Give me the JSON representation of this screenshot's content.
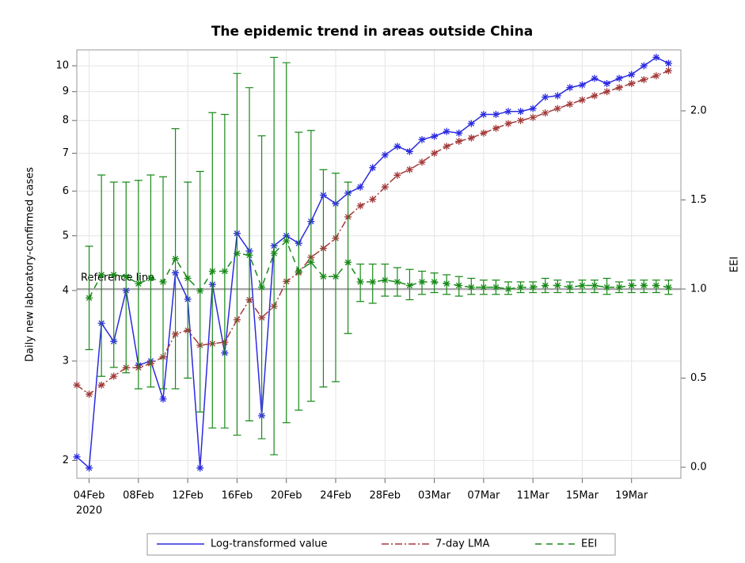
{
  "chart_data": {
    "type": "line",
    "title": "The epidemic trend in areas outside China",
    "y_label": "Daily new laboratory-confirmed cases",
    "y2_label": "EEI",
    "x_year_label": "2020",
    "yscale": "log",
    "grid": true,
    "legend_position": "bottom",
    "x": [
      "2020-02-03",
      "2020-02-04",
      "2020-02-05",
      "2020-02-06",
      "2020-02-07",
      "2020-02-08",
      "2020-02-09",
      "2020-02-10",
      "2020-02-11",
      "2020-02-12",
      "2020-02-13",
      "2020-02-14",
      "2020-02-15",
      "2020-02-16",
      "2020-02-17",
      "2020-02-18",
      "2020-02-19",
      "2020-02-20",
      "2020-02-21",
      "2020-02-22",
      "2020-02-23",
      "2020-02-24",
      "2020-02-25",
      "2020-02-26",
      "2020-02-27",
      "2020-02-28",
      "2020-02-29",
      "2020-03-01",
      "2020-03-02",
      "2020-03-03",
      "2020-03-04",
      "2020-03-05",
      "2020-03-06",
      "2020-03-07",
      "2020-03-08",
      "2020-03-09",
      "2020-03-10",
      "2020-03-11",
      "2020-03-12",
      "2020-03-13",
      "2020-03-14",
      "2020-03-15",
      "2020-03-16",
      "2020-03-17",
      "2020-03-18",
      "2020-03-19",
      "2020-03-20",
      "2020-03-21",
      "2020-03-22"
    ],
    "xlim": [
      "2020-02-03",
      "2020-03-23"
    ],
    "xticks": [
      {
        "value": "2020-02-04",
        "label": "04Feb"
      },
      {
        "value": "2020-02-08",
        "label": "08Feb"
      },
      {
        "value": "2020-02-12",
        "label": "12Feb"
      },
      {
        "value": "2020-02-16",
        "label": "16Feb"
      },
      {
        "value": "2020-02-20",
        "label": "20Feb"
      },
      {
        "value": "2020-02-24",
        "label": "24Feb"
      },
      {
        "value": "2020-02-28",
        "label": "28Feb"
      },
      {
        "value": "2020-03-03",
        "label": "03Mar"
      },
      {
        "value": "2020-03-07",
        "label": "07Mar"
      },
      {
        "value": "2020-03-11",
        "label": "11Mar"
      },
      {
        "value": "2020-03-15",
        "label": "15Mar"
      },
      {
        "value": "2020-03-19",
        "label": "19Mar"
      }
    ],
    "ylim": [
      1.86,
      10.67
    ],
    "yticks": [
      2,
      3,
      4,
      5,
      6,
      7,
      8,
      9,
      10
    ],
    "y2lim": [
      -0.062,
      2.342
    ],
    "y2ticks": [
      {
        "value": 0,
        "label": "0.0"
      },
      {
        "value": 0.5,
        "label": "0.5"
      },
      {
        "value": 1,
        "label": "1.0"
      },
      {
        "value": 1.5,
        "label": "1.5"
      },
      {
        "value": 2,
        "label": "2.0"
      }
    ],
    "reference_line": {
      "value": 1,
      "axis": "y2",
      "label": "Reference line"
    },
    "series": [
      {
        "name": "Log-transformed value",
        "color": "#2b2be0",
        "dash": "solid",
        "values": [
          2.03,
          1.94,
          3.5,
          3.25,
          4.0,
          2.95,
          3.0,
          2.57,
          4.3,
          3.86,
          1.94,
          4.1,
          3.1,
          5.05,
          4.7,
          2.4,
          4.8,
          5.0,
          4.85,
          5.3,
          5.9,
          5.7,
          5.95,
          6.1,
          6.6,
          6.95,
          7.2,
          7.05,
          7.4,
          7.5,
          7.65,
          7.6,
          7.9,
          8.2,
          8.2,
          8.3,
          8.3,
          8.4,
          8.8,
          8.85,
          9.15,
          9.25,
          9.5,
          9.3,
          9.5,
          9.65,
          10.0,
          10.35,
          10.1
        ]
      },
      {
        "name": "7-day LMA",
        "color": "#a33a3a",
        "dash": "dashdot",
        "values": [
          2.72,
          2.62,
          2.72,
          2.82,
          2.92,
          2.92,
          2.97,
          3.05,
          3.35,
          3.4,
          3.2,
          3.22,
          3.24,
          3.55,
          3.85,
          3.58,
          3.75,
          4.15,
          4.3,
          4.58,
          4.75,
          4.95,
          5.4,
          5.65,
          5.8,
          6.1,
          6.4,
          6.55,
          6.75,
          7.0,
          7.2,
          7.35,
          7.45,
          7.6,
          7.75,
          7.9,
          8.0,
          8.1,
          8.25,
          8.4,
          8.55,
          8.7,
          8.85,
          9.0,
          9.15,
          9.3,
          9.45,
          9.6,
          9.8
        ]
      },
      {
        "name": "EEI",
        "color": "#1a8a1a",
        "dash": "dashed",
        "axis": "y2",
        "values": [
          null,
          0.95,
          1.08,
          1.08,
          1.07,
          1.03,
          1.06,
          1.04,
          1.17,
          1.06,
          0.99,
          1.1,
          1.1,
          1.2,
          1.19,
          1.01,
          1.2,
          1.27,
          1.1,
          1.15,
          1.07,
          1.07,
          1.15,
          1.04,
          1.04,
          1.05,
          1.04,
          1.02,
          1.04,
          1.04,
          1.03,
          1.02,
          1.01,
          1.01,
          1.01,
          1.0,
          1.01,
          1.01,
          1.02,
          1.02,
          1.01,
          1.02,
          1.02,
          1.01,
          1.01,
          1.02,
          1.02,
          1.02,
          1.01
        ],
        "lower": [
          null,
          0.66,
          0.51,
          0.56,
          0.53,
          0.44,
          0.45,
          0.44,
          0.44,
          0.5,
          0.31,
          0.22,
          0.22,
          0.18,
          0.26,
          0.16,
          0.07,
          0.25,
          0.32,
          0.37,
          0.45,
          0.48,
          0.75,
          0.93,
          0.92,
          0.96,
          0.96,
          0.94,
          0.97,
          0.98,
          0.97,
          0.96,
          0.97,
          0.97,
          0.97,
          0.97,
          0.98,
          0.98,
          0.98,
          0.98,
          0.98,
          0.98,
          0.98,
          0.97,
          0.98,
          0.98,
          0.98,
          0.98,
          0.97
        ],
        "upper": [
          null,
          1.24,
          1.64,
          1.6,
          1.6,
          1.61,
          1.64,
          1.63,
          1.9,
          1.6,
          1.66,
          1.99,
          1.98,
          2.21,
          2.13,
          1.86,
          2.3,
          2.27,
          1.88,
          1.89,
          1.67,
          1.65,
          1.6,
          1.14,
          1.14,
          1.14,
          1.12,
          1.11,
          1.1,
          1.09,
          1.08,
          1.07,
          1.06,
          1.05,
          1.05,
          1.04,
          1.04,
          1.04,
          1.06,
          1.05,
          1.04,
          1.05,
          1.05,
          1.06,
          1.04,
          1.05,
          1.05,
          1.05,
          1.05
        ]
      }
    ]
  }
}
